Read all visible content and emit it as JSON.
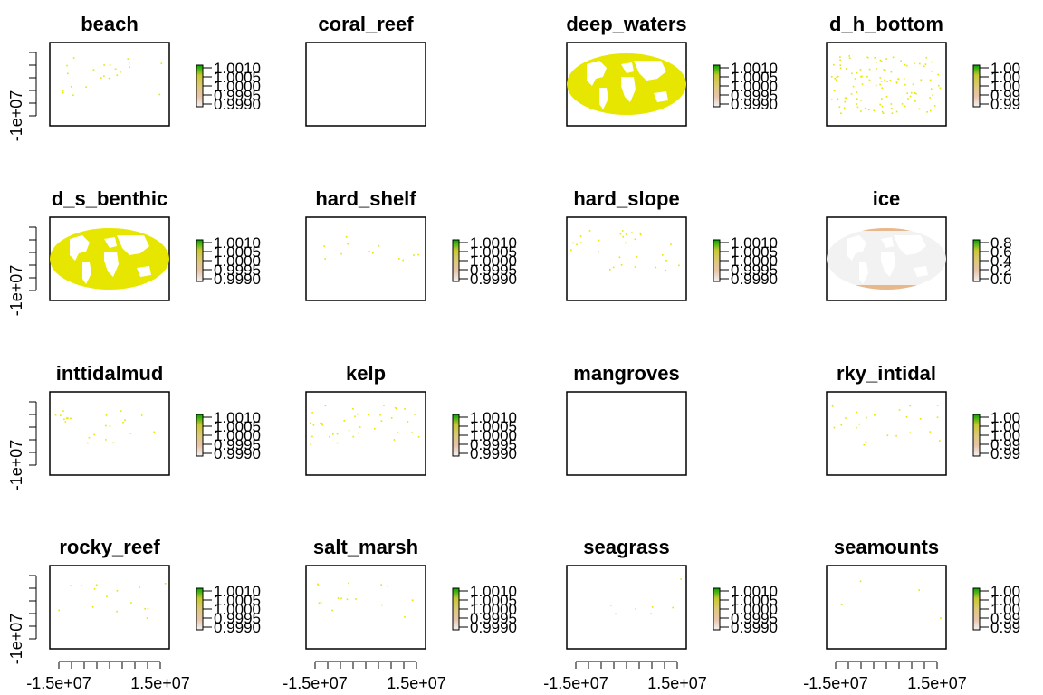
{
  "colors": {
    "background": "#ffffff",
    "axis": "#000000",
    "habitat_fill": "#e6e600",
    "land": "#f2f2f2",
    "ice": "#e8b88a",
    "legend_ramp": [
      "#f2f2f2",
      "#e8c4aa",
      "#dcc87a",
      "#c8c832",
      "#00a600"
    ]
  },
  "x_tick_labels": [
    "-1.5e+07",
    "1.5e+07"
  ],
  "y_tick_label": "-1e+07",
  "legend_scales": {
    "long": [
      "1.0010",
      "1.0005",
      "1.0000",
      "0.9995",
      "0.9990"
    ],
    "short": [
      "1.00",
      "1.00",
      "1.00",
      "0.99",
      "0.99"
    ],
    "ice": [
      "0.8",
      "0.6",
      "0.4",
      "0.2",
      "0.0"
    ]
  },
  "chart_data": [
    {
      "type": "heatmap",
      "title": "beach",
      "legend": "long",
      "pattern": "sparse",
      "density": 0.15
    },
    {
      "type": "heatmap",
      "title": "coral_reef",
      "legend": "none",
      "pattern": "empty",
      "density": 0
    },
    {
      "type": "heatmap",
      "title": "deep_waters",
      "legend": "long",
      "pattern": "ocean",
      "density": 1
    },
    {
      "type": "heatmap",
      "title": "d_h_bottom",
      "legend": "short",
      "pattern": "scatter",
      "density": 0.5
    },
    {
      "type": "heatmap",
      "title": "d_s_benthic",
      "legend": "long",
      "pattern": "ocean",
      "density": 1
    },
    {
      "type": "heatmap",
      "title": "hard_shelf",
      "legend": "long",
      "pattern": "sparse",
      "density": 0.08
    },
    {
      "type": "heatmap",
      "title": "hard_slope",
      "legend": "long",
      "pattern": "sparse",
      "density": 0.2
    },
    {
      "type": "heatmap",
      "title": "ice",
      "legend": "ice",
      "pattern": "ice",
      "density": 1
    },
    {
      "type": "heatmap",
      "title": "inttidalmud",
      "legend": "long",
      "pattern": "sparse",
      "density": 0.15
    },
    {
      "type": "heatmap",
      "title": "kelp",
      "legend": "long",
      "pattern": "sparse",
      "density": 0.25
    },
    {
      "type": "heatmap",
      "title": "mangroves",
      "legend": "none",
      "pattern": "empty",
      "density": 0
    },
    {
      "type": "heatmap",
      "title": "rky_intidal",
      "legend": "short",
      "pattern": "sparse",
      "density": 0.15
    },
    {
      "type": "heatmap",
      "title": "rocky_reef",
      "legend": "long",
      "pattern": "sparse",
      "density": 0.1
    },
    {
      "type": "heatmap",
      "title": "salt_marsh",
      "legend": "long",
      "pattern": "sparse",
      "density": 0.1
    },
    {
      "type": "heatmap",
      "title": "seagrass",
      "legend": "long",
      "pattern": "sparse",
      "density": 0.04
    },
    {
      "type": "heatmap",
      "title": "seamounts",
      "legend": "short",
      "pattern": "sparse",
      "density": 0.02
    }
  ]
}
